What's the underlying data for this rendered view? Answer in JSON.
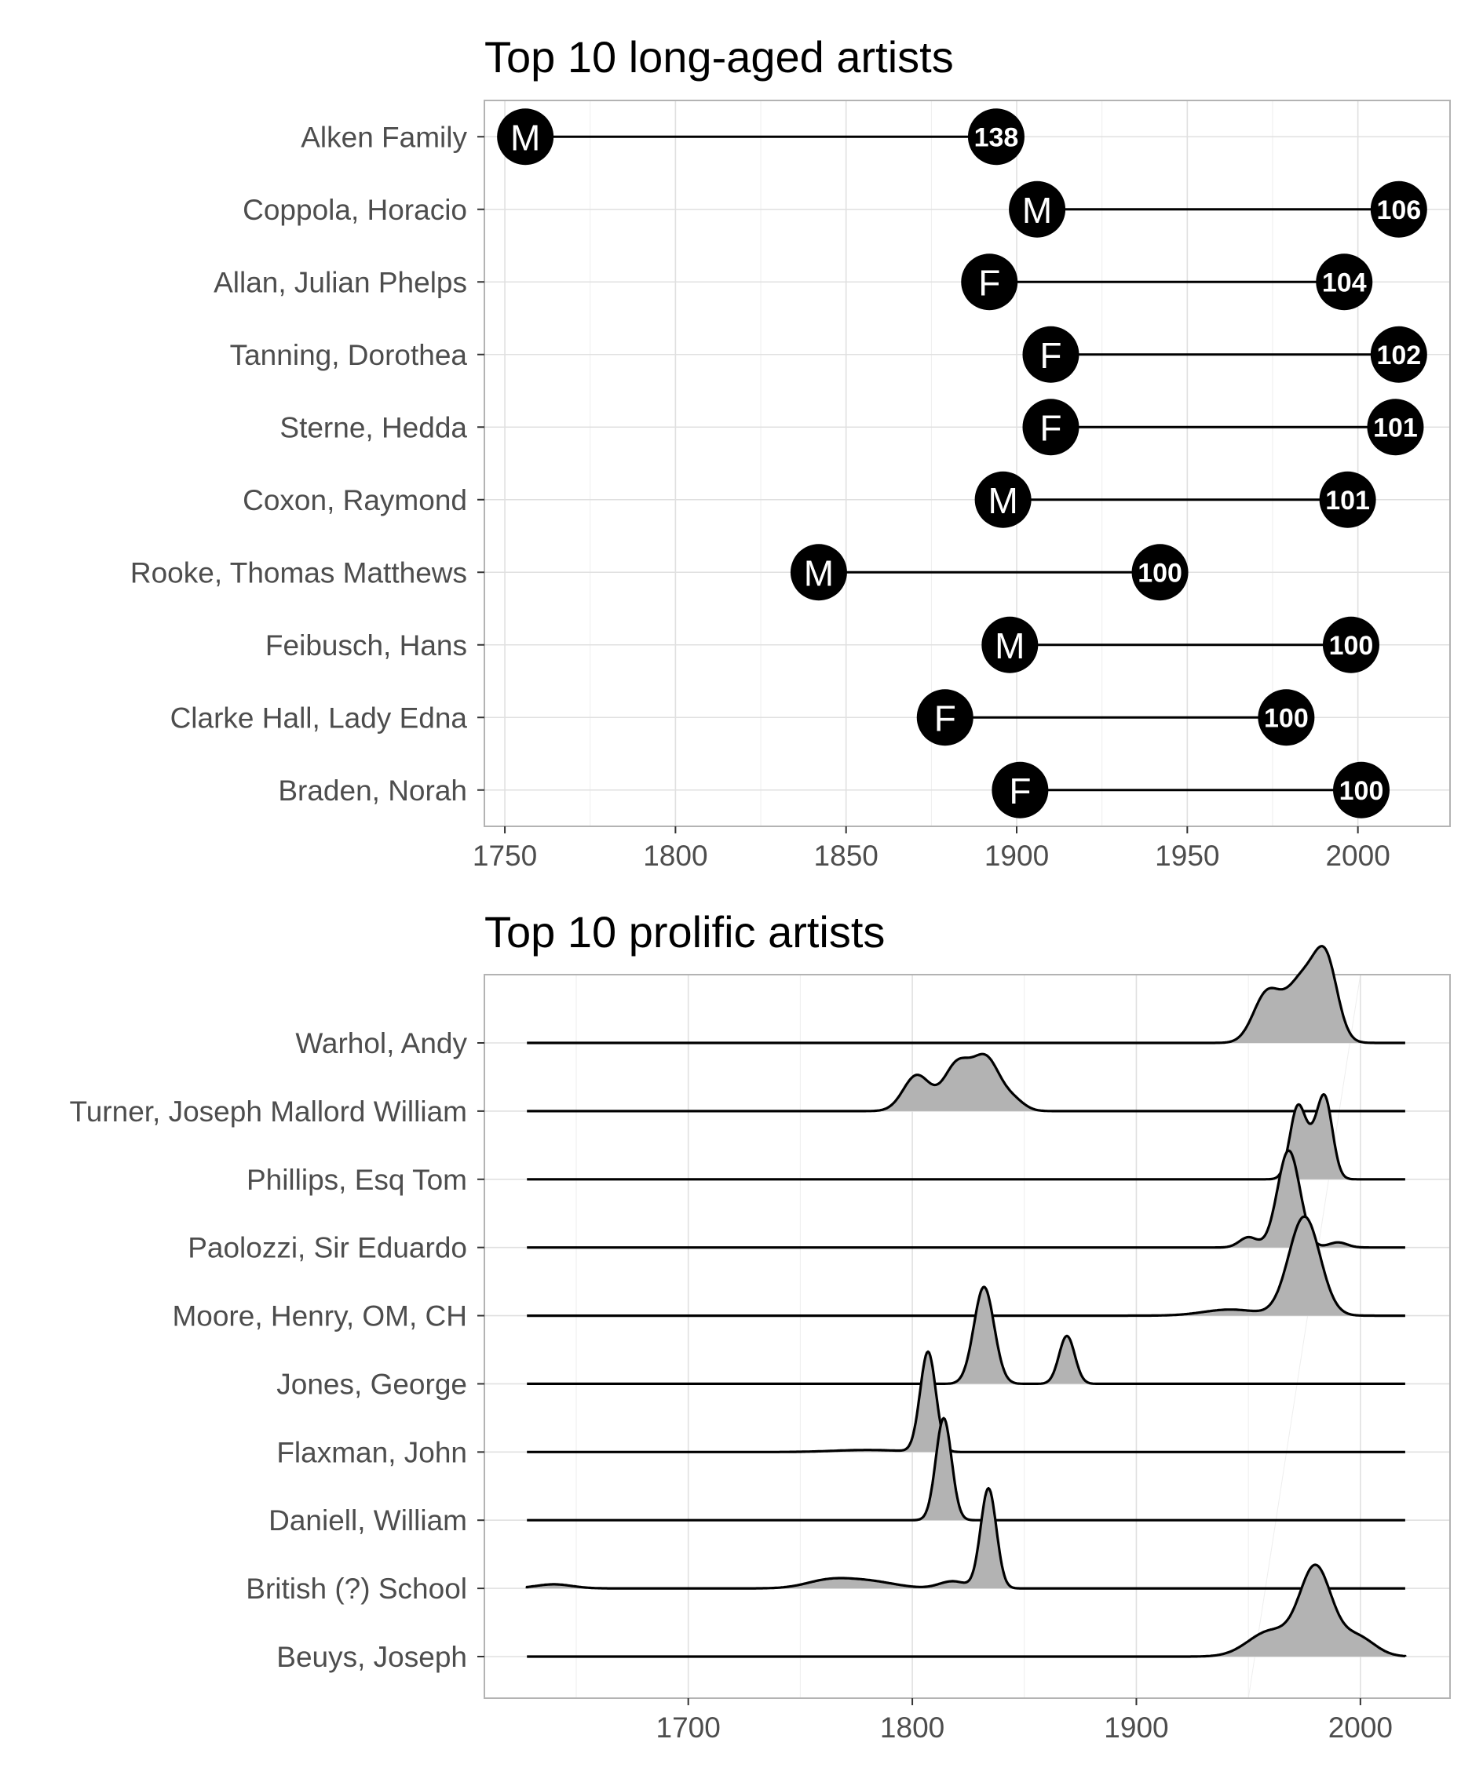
{
  "chart_data": [
    {
      "type": "dumbbell",
      "title": "Top 10 long-aged artists",
      "xlabel": "",
      "ylabel": "",
      "xlim": [
        1744,
        2027
      ],
      "xticks": [
        1750,
        1800,
        1850,
        1900,
        1950,
        2000
      ],
      "grid": true,
      "legend": "none",
      "artists": [
        {
          "name": "Alken Family",
          "gender": "M",
          "birth": 1756,
          "death": 1894,
          "age": "138"
        },
        {
          "name": "Coppola, Horacio",
          "gender": "M",
          "birth": 1906,
          "death": 2012,
          "age": "106"
        },
        {
          "name": "Allan, Julian Phelps",
          "gender": "F",
          "birth": 1892,
          "death": 1996,
          "age": "104"
        },
        {
          "name": "Tanning, Dorothea",
          "gender": "F",
          "birth": 1910,
          "death": 2012,
          "age": "102"
        },
        {
          "name": "Sterne, Hedda",
          "gender": "F",
          "birth": 1910,
          "death": 2011,
          "age": "101"
        },
        {
          "name": "Coxon, Raymond",
          "gender": "M",
          "birth": 1896,
          "death": 1997,
          "age": "101"
        },
        {
          "name": "Rooke, Thomas Matthews",
          "gender": "M",
          "birth": 1842,
          "death": 1942,
          "age": "100"
        },
        {
          "name": "Feibusch, Hans",
          "gender": "M",
          "birth": 1898,
          "death": 1998,
          "age": "100"
        },
        {
          "name": "Clarke Hall, Lady Edna",
          "gender": "F",
          "birth": 1879,
          "death": 1979,
          "age": "100"
        },
        {
          "name": "Braden, Norah",
          "gender": "F",
          "birth": 1901,
          "death": 2001,
          "age": "100"
        }
      ]
    },
    {
      "type": "ridgeline",
      "title": "Top 10 prolific artists",
      "xlabel": "",
      "ylabel": "",
      "xlim": [
        1609,
        2040
      ],
      "xticks": [
        1700,
        1800,
        1900,
        2000
      ],
      "grid": true,
      "legend": "none",
      "x_range": [
        1628,
        2020
      ],
      "artists": [
        {
          "name": "Warhol, Andy",
          "components": [
            [
              1958,
              6,
              0.45
            ],
            [
              1975,
              8,
              0.65
            ],
            [
              1985,
              5,
              0.6
            ]
          ]
        },
        {
          "name": "Turner, Joseph Mallord William",
          "components": [
            [
              1802,
              6,
              0.35
            ],
            [
              1820,
              6,
              0.45
            ],
            [
              1833,
              6,
              0.5
            ],
            [
              1845,
              5,
              0.1
            ]
          ]
        },
        {
          "name": "Phillips, Esq Tom",
          "components": [
            [
              1972,
              3.5,
              0.7
            ],
            [
              1984,
              3.5,
              0.8
            ],
            [
              1978,
              3,
              0.2
            ]
          ]
        },
        {
          "name": "Paolozzi, Sir Eduardo",
          "components": [
            [
              1950,
              4,
              0.1
            ],
            [
              1968,
              5,
              0.95
            ],
            [
              1990,
              4,
              0.05
            ]
          ]
        },
        {
          "name": "Moore, Henry, OM, CH",
          "components": [
            [
              1942,
              12,
              0.06
            ],
            [
              1975,
              7,
              0.97
            ]
          ]
        },
        {
          "name": "Jones, George",
          "components": [
            [
              1832,
              4.5,
              0.95
            ],
            [
              1869,
              3.5,
              0.47
            ]
          ]
        },
        {
          "name": "Flaxman, John",
          "components": [
            [
              1807,
              3.5,
              0.98
            ],
            [
              1780,
              15,
              0.02
            ]
          ]
        },
        {
          "name": "Daniell, William",
          "components": [
            [
              1814,
              3.5,
              1.0
            ]
          ]
        },
        {
          "name": "British (?) School",
          "components": [
            [
              1640,
              8,
              0.04
            ],
            [
              1762,
              10,
              0.07
            ],
            [
              1780,
              12,
              0.07
            ],
            [
              1818,
              6,
              0.07
            ],
            [
              1834,
              3.5,
              0.98
            ]
          ]
        },
        {
          "name": "Beuys, Joseph",
          "components": [
            [
              1960,
              10,
              0.25
            ],
            [
              1980,
              7,
              0.85
            ],
            [
              1998,
              8,
              0.2
            ]
          ]
        }
      ]
    }
  ]
}
